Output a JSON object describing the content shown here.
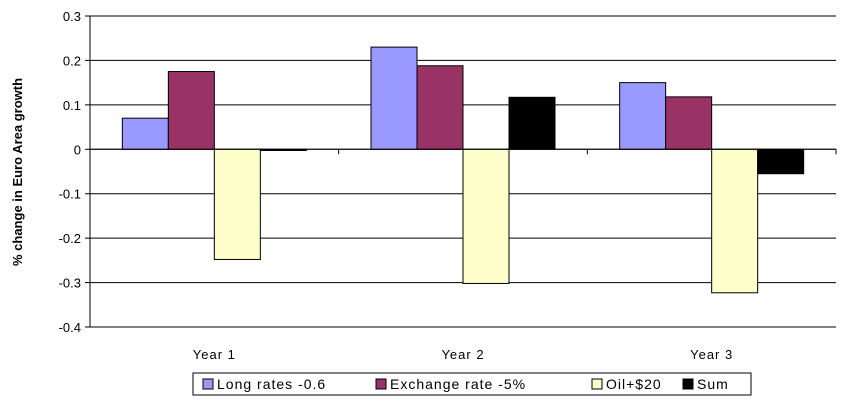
{
  "chart_data": {
    "type": "bar",
    "title": "",
    "xlabel": "",
    "ylabel": "% change in Euro Area growth",
    "ylim": [
      -0.4,
      0.3
    ],
    "yticks": [
      "0.3",
      "0.2",
      "0.1",
      "0",
      "-0.1",
      "-0.2",
      "-0.3",
      "-0.4"
    ],
    "ytick_values": [
      0.3,
      0.2,
      0.1,
      0,
      -0.1,
      -0.2,
      -0.3,
      -0.4
    ],
    "grid": true,
    "legend_position": "bottom",
    "categories": [
      "Year 1",
      "Year 2",
      "Year 3"
    ],
    "series": [
      {
        "name": "Long rates -0.6",
        "color": "#9999ff",
        "values": [
          0.07,
          0.23,
          0.15
        ]
      },
      {
        "name": "Exchange rate -5%",
        "color": "#993366",
        "values": [
          0.175,
          0.188,
          0.118
        ]
      },
      {
        "name": "Oil+$20",
        "color": "#ffffcc",
        "values": [
          -0.248,
          -0.302,
          -0.323
        ]
      },
      {
        "name": "Sum",
        "color": "#000000",
        "values": [
          -0.002,
          0.117,
          -0.055
        ]
      }
    ]
  }
}
